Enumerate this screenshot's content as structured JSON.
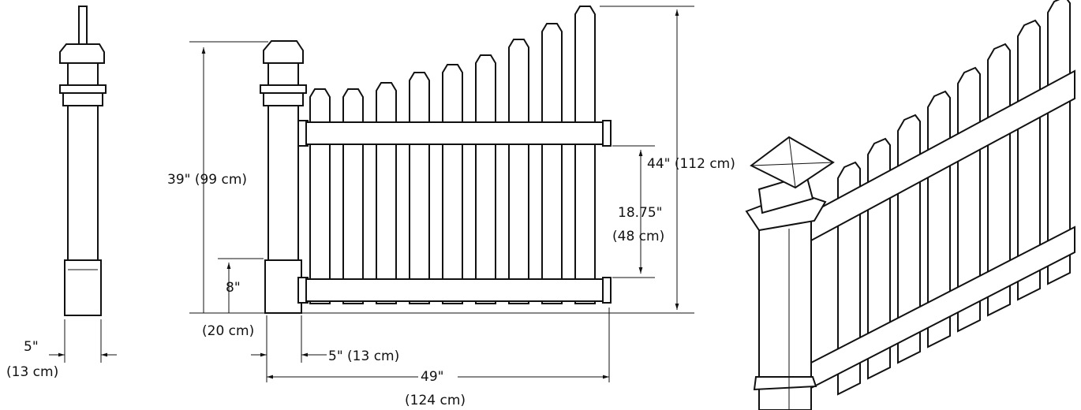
{
  "single_post": {
    "width_in": "5\"",
    "width_cm": "(13 cm)"
  },
  "front_view": {
    "post_height": "39\" (99 cm)",
    "base_height_in": "8\"",
    "base_height_cm": "(20 cm)",
    "post_width": "5\" (13 cm)",
    "panel_width_in": "49\"",
    "panel_width_cm": "(124 cm)",
    "panel_height": "44\" (112 cm)",
    "rail_spacing_in": "18.75\"",
    "rail_spacing_cm": "(48 cm)"
  }
}
